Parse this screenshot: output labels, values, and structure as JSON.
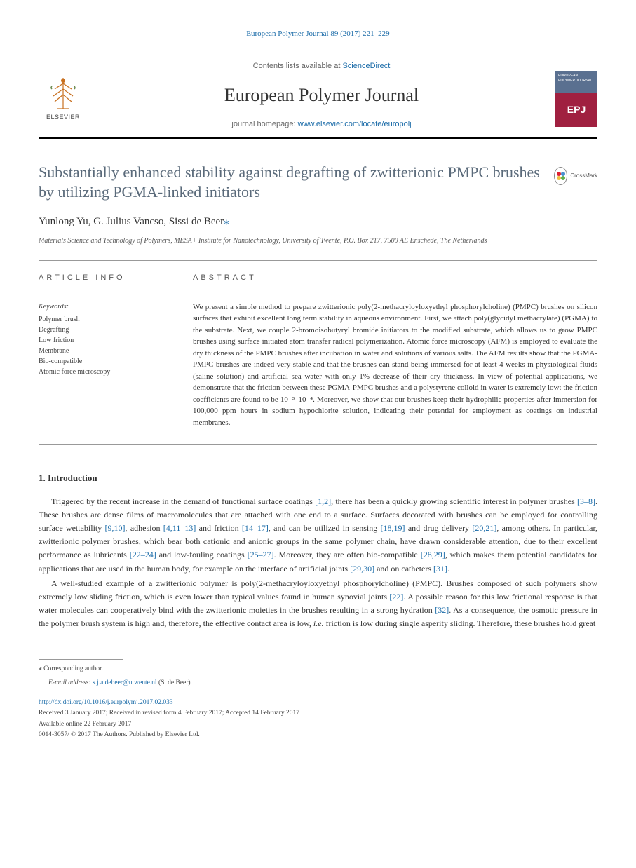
{
  "citation": "European Polymer Journal 89 (2017) 221–229",
  "header": {
    "contents_prefix": "Contents lists available at ",
    "contents_link": "ScienceDirect",
    "journal_name": "European Polymer Journal",
    "homepage_prefix": "journal homepage: ",
    "homepage_url": "www.elsevier.com/locate/europolj",
    "logo_text": "ELSEVIER",
    "cover_text": "EUROPEAN POLYMER JOURNAL"
  },
  "crossmark_label": "CrossMark",
  "title": "Substantially enhanced stability against degrafting of zwitterionic PMPC brushes by utilizing PGMA-linked initiators",
  "authors": "Yunlong Yu, G. Julius Vancso, Sissi de Beer",
  "corr_marker": "⁎",
  "affiliation": "Materials Science and Technology of Polymers, MESA+ Institute for Nanotechnology, University of Twente, P.O. Box 217, 7500 AE Enschede, The Netherlands",
  "info": {
    "heading": "ARTICLE INFO",
    "keywords_label": "Keywords:",
    "keywords": [
      "Polymer brush",
      "Degrafting",
      "Low friction",
      "Membrane",
      "Bio-compatible",
      "Atomic force microscopy"
    ]
  },
  "abstract": {
    "heading": "ABSTRACT",
    "text": "We present a simple method to prepare zwitterionic poly(2-methacryloyloxyethyl phosphorylcholine) (PMPC) brushes on silicon surfaces that exhibit excellent long term stability in aqueous environment. First, we attach poly(glycidyl methacrylate) (PGMA) to the substrate. Next, we couple 2-bromoisobutyryl bromide initiators to the modified substrate, which allows us to grow PMPC brushes using surface initiated atom transfer radical polymerization. Atomic force microscopy (AFM) is employed to evaluate the dry thickness of the PMPC brushes after incubation in water and solutions of various salts. The AFM results show that the PGMA-PMPC brushes are indeed very stable and that the brushes can stand being immersed for at least 4 weeks in physiological fluids (saline solution) and artificial sea water with only 1% decrease of their dry thickness. In view of potential applications, we demonstrate that the friction between these PGMA-PMPC brushes and a polystyrene colloid in water is extremely low: the friction coefficients are found to be 10⁻³–10⁻⁴. Moreover, we show that our brushes keep their hydrophilic properties after immersion for 100,000 ppm hours in sodium hypochlorite solution, indicating their potential for employment as coatings on industrial membranes."
  },
  "introduction": {
    "heading": "1. Introduction",
    "para1_parts": [
      "Triggered by the recent increase in the demand of functional surface coatings ",
      "[1,2]",
      ", there has been a quickly growing scientific interest in polymer brushes ",
      "[3–8]",
      ". These brushes are dense films of macromolecules that are attached with one end to a surface. Surfaces decorated with brushes can be employed for controlling surface wettability ",
      "[9,10]",
      ", adhesion ",
      "[4,11–13]",
      " and friction ",
      "[14–17]",
      ", and can be utilized in sensing ",
      "[18,19]",
      " and drug delivery ",
      "[20,21]",
      ", among others. In particular, zwitterionic polymer brushes, which bear both cationic and anionic groups in the same polymer chain, have drawn considerable attention, due to their excellent performance as lubricants ",
      "[22–24]",
      " and low-fouling coatings ",
      "[25–27]",
      ". Moreover, they are often bio-compatible ",
      "[28,29]",
      ", which makes them potential candidates for applications that are used in the human body, for example on the interface of artificial joints ",
      "[29,30]",
      " and on catheters ",
      "[31]",
      "."
    ],
    "para2_parts": [
      "A well-studied example of a zwitterionic polymer is poly(2-methacryloyloxyethyl phosphorylcholine) (PMPC). Brushes composed of such polymers show extremely low sliding friction, which is even lower than typical values found in human synovial joints ",
      "[22]",
      ". A possible reason for this low frictional response is that water molecules can cooperatively bind with the zwitterionic moieties in the brushes resulting in a strong hydration ",
      "[32]",
      ". As a consequence, the osmotic pressure in the polymer brush system is high and, therefore, the effective contact area is low, ",
      "i.e.",
      " friction is low during single asperity sliding. Therefore, these brushes hold great"
    ]
  },
  "footnotes": {
    "corr_label": "⁎ Corresponding author.",
    "email_label": "E-mail address: ",
    "email": "s.j.a.debeer@utwente.nl",
    "email_name": " (S. de Beer)."
  },
  "footer": {
    "doi": "http://dx.doi.org/10.1016/j.eurpolymj.2017.02.033",
    "dates_line1": "Received 3 January 2017; Received in revised form 4 February 2017; Accepted 14 February 2017",
    "dates_line2": "Available online 22 February 2017",
    "copyright": "0014-3057/ © 2017 The Authors. Published by Elsevier Ltd."
  },
  "colors": {
    "link": "#1a6ba8",
    "title": "#5a6a7a",
    "text": "#333333"
  }
}
